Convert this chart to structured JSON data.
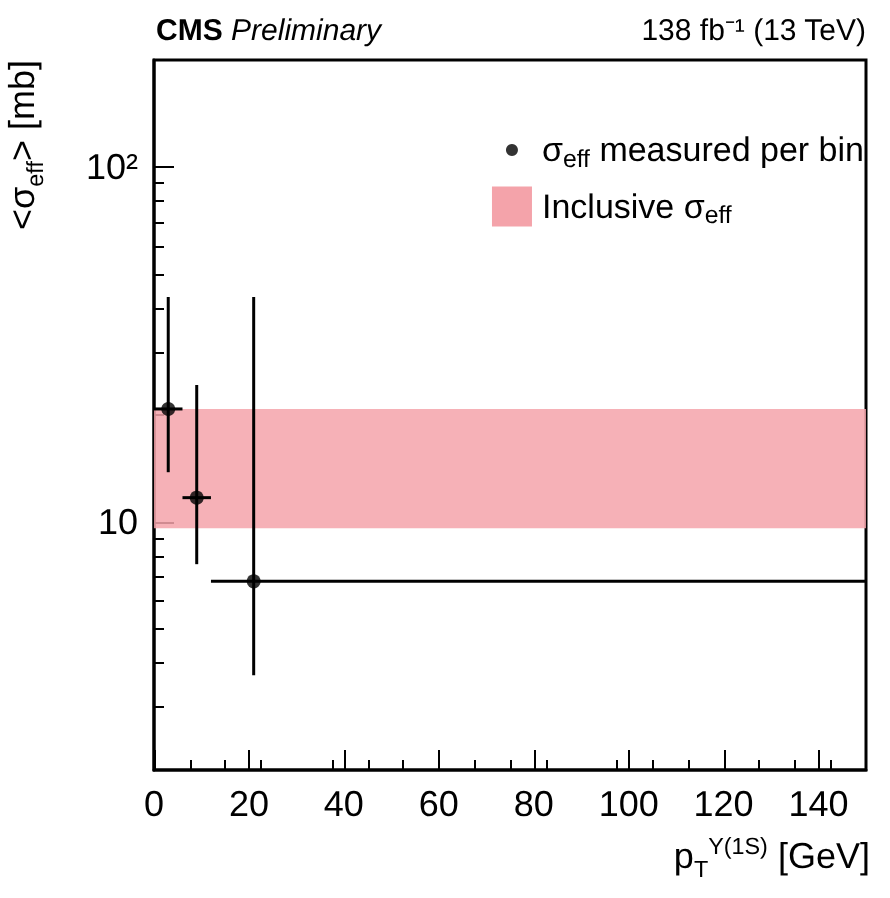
{
  "chart_data": {
    "type": "scatter",
    "xlabel": "p$_{T}$$^{Υ(1S)}$ [GeV]",
    "ylabel": "<σ$_{eff}$> [mb]",
    "annotations": [
      "CMS Preliminary",
      "138 fb⁻¹ (13 TeV)"
    ],
    "x": [
      3,
      9,
      21
    ],
    "series": [
      {
        "name": "σ$_{eff}$ measured per bin",
        "color": "#000000",
        "values": [
          20.8,
          11.7,
          6.8
        ],
        "errors": [
          [
            13.8,
            43
          ],
          [
            7.6,
            24.3
          ],
          [
            3.7,
            43
          ]
        ],
        "xerrors": [
          [
            0,
            6
          ],
          [
            6,
            12
          ],
          [
            12,
            150
          ]
        ]
      }
    ],
    "bands": [
      {
        "axis": "y",
        "from": 9.6,
        "to": 20.8,
        "label": "Inclusive σ$_{eff}$",
        "color": "#f4a3aa"
      }
    ],
    "xlim": [
      0,
      150
    ],
    "xticks": [
      0,
      20,
      40,
      60,
      80,
      100,
      120,
      140
    ],
    "ylim": [
      2,
      200
    ],
    "yticks": [
      {
        "value": 10,
        "label": "10"
      },
      {
        "value": 100,
        "label": "10²"
      }
    ],
    "log": "y",
    "grid": false,
    "legend": "top right",
    "marker": "circle"
  }
}
